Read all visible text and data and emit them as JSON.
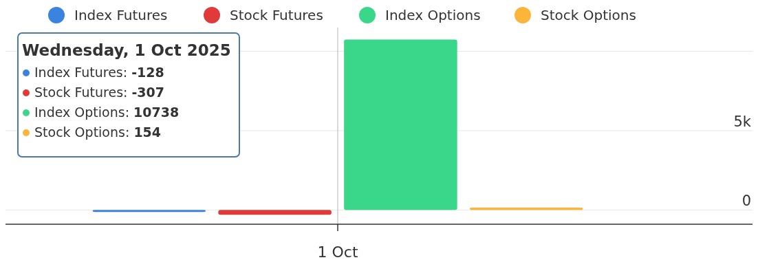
{
  "chart_data": {
    "type": "bar",
    "categories": [
      "1 Oct"
    ],
    "series": [
      {
        "name": "Index Futures",
        "color": "#3a84e0",
        "values": [
          -128
        ]
      },
      {
        "name": "Stock Futures",
        "color": "#e03a3a",
        "values": [
          -307
        ]
      },
      {
        "name": "Index Options",
        "color": "#3ad68a",
        "values": [
          10738
        ]
      },
      {
        "name": "Stock Options",
        "color": "#fbb53a",
        "values": [
          154
        ]
      }
    ],
    "ylim": [
      -900,
      11500
    ],
    "yticks": [
      {
        "value": 0,
        "label": "0"
      },
      {
        "value": 5000,
        "label": "5k"
      },
      {
        "value": 10000,
        "label": null
      }
    ],
    "grid": "y",
    "legend": "top",
    "ref_lines": [
      {
        "axis": "x",
        "value": "1 Oct",
        "color": "#cccccc"
      }
    ],
    "annotations": [
      "Wednesday, 1 Oct 2025",
      "Index Futures: -128",
      "Stock Futures: -307",
      "Index Options: 10738",
      "Stock Options: 154"
    ]
  }
}
